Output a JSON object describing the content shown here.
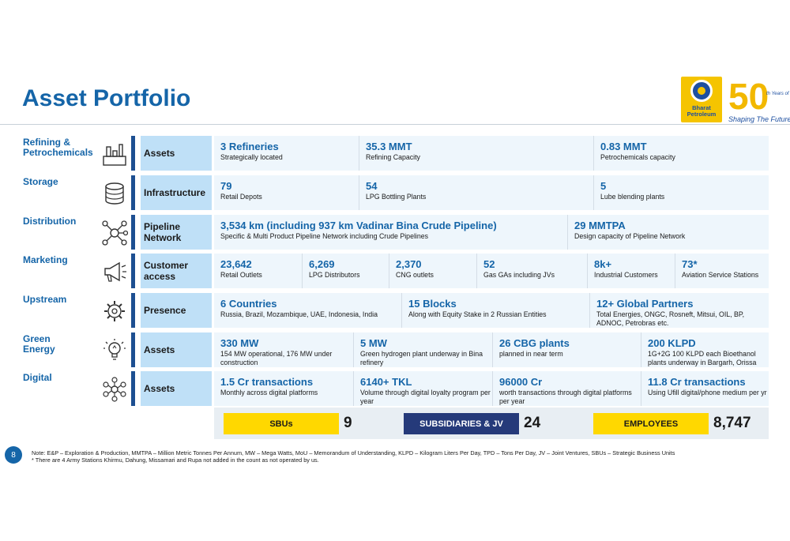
{
  "title": "Asset Portfolio",
  "logo": {
    "line1": "Bharat",
    "line2": "Petroleum"
  },
  "badge": {
    "number": "50",
    "years": "th Years of",
    "tagline": "Shaping The Future"
  },
  "rows": [
    {
      "category": "Refining &\nPetrochemicals",
      "icon": "refinery-icon",
      "label": "Assets",
      "cells": [
        {
          "value": "3 Refineries",
          "desc": "Strategically located"
        },
        {
          "value": "35.3 MMT",
          "desc": "Refining Capacity"
        },
        {
          "value": "0.83 MMT",
          "desc": "Petrochemicals capacity"
        }
      ]
    },
    {
      "category": "Storage",
      "icon": "storage-tank-icon",
      "label": "Infrastructure",
      "cells": [
        {
          "value": "79",
          "desc": "Retail Depots"
        },
        {
          "value": "54",
          "desc": "LPG Bottling Plants"
        },
        {
          "value": "5",
          "desc": "Lube blending plants"
        }
      ]
    },
    {
      "category": "Distribution",
      "icon": "network-icon",
      "label": "Pipeline Network",
      "cells": [
        {
          "value": "3,534 km (including 937 km Vadinar Bina Crude Pipeline)",
          "desc": "Specific & Multi Product Pipeline Network including Crude Pipelines"
        },
        {
          "value": "29 MMTPA",
          "desc": "Design capacity of Pipeline Network"
        }
      ]
    },
    {
      "category": "Marketing",
      "icon": "megaphone-icon",
      "label": "Customer access",
      "cells": [
        {
          "value": "23,642",
          "desc": "Retail Outlets"
        },
        {
          "value": "6,269",
          "desc": "LPG Distributors"
        },
        {
          "value": "2,370",
          "desc": "CNG outlets"
        },
        {
          "value": "52",
          "desc": "Gas GAs including JVs"
        },
        {
          "value": "8k+",
          "desc": "Industrial Customers"
        },
        {
          "value": "73*",
          "desc": "Aviation Service Stations"
        }
      ]
    },
    {
      "category": "Upstream",
      "icon": "gears-icon",
      "label": "Presence",
      "cells": [
        {
          "value": "6 Countries",
          "desc": "Russia, Brazil, Mozambique, UAE, Indonesia, India"
        },
        {
          "value": "15 Blocks",
          "desc": "Along with Equity Stake in 2 Russian Entities"
        },
        {
          "value": "12+ Global Partners",
          "desc": "Total Energies, ONGC, Rosneft, Mitsui, OIL, BP, ADNOC, Petrobras etc."
        }
      ]
    },
    {
      "category": "Green\nEnergy",
      "icon": "lightbulb-icon",
      "label": "Assets",
      "cells": [
        {
          "value": "330 MW",
          "desc": "154 MW operational, 176 MW under construction"
        },
        {
          "value": "5 MW",
          "desc": "Green hydrogen plant underway in Bina refinery"
        },
        {
          "value": "26 CBG plants",
          "desc": "planned in near term"
        },
        {
          "value": "200 KLPD",
          "desc": "1G+2G 100 KLPD each Bioethanol plants underway in Bargarh, Orissa"
        }
      ]
    },
    {
      "category": "Digital",
      "icon": "digital-network-icon",
      "label": "Assets",
      "cells": [
        {
          "value": "1.5 Cr transactions",
          "desc": "Monthly across digital platforms"
        },
        {
          "value": "6140+ TKL",
          "desc": "Volume through digital loyalty program per year"
        },
        {
          "value": "96000 Cr",
          "desc": "worth transactions through digital platforms per year"
        },
        {
          "value": "11.8 Cr transactions",
          "desc": "Using Ufill digital/phone medium per yr"
        }
      ]
    }
  ],
  "summary": [
    {
      "label": "SBUs",
      "value": "9",
      "bg": "#ffd800",
      "fg": "#1a1a1a"
    },
    {
      "label": "SUBSIDIARIES & JV",
      "value": "24",
      "bg": "#253a7a",
      "fg": "#ffffff"
    },
    {
      "label": "EMPLOYEES",
      "value": "8,747",
      "bg": "#ffd800",
      "fg": "#1a1a1a"
    }
  ],
  "page_number": "8",
  "note_line1": "Note: E&P – Exploration & Production, MMTPA – Million Metric Tonnes Per Annum, MW – Mega Watts, MoU – Memorandum of Understanding, KLPD – Kilogram Liters Per Day, TPD – Tons Per Day, JV – Joint Ventures, SBUs – Strategic Business Units",
  "note_line2": "* There are 4 Army Stations  Khirmu, Dahung, Missamari and Rupa not added in the count as not operated by us.",
  "colors": {
    "title": "#1565a8",
    "label_bg": "#bfe0f7",
    "bar": "#1d4f91",
    "band": "#eef6fc"
  }
}
